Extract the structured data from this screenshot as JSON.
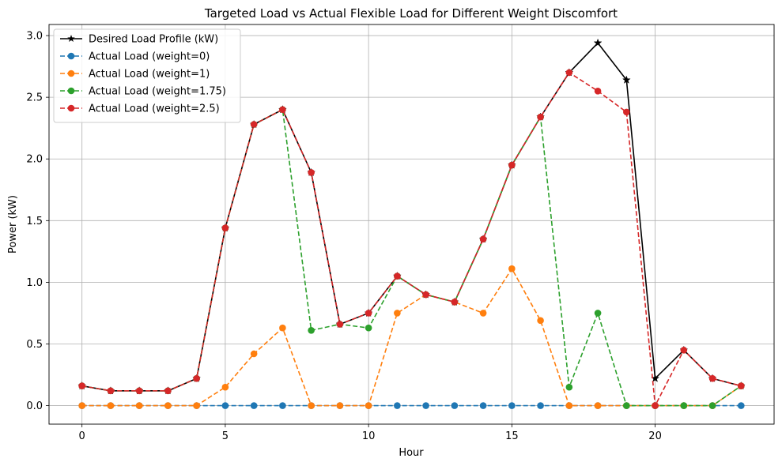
{
  "chart_data": {
    "type": "line",
    "title": "Targeted Load vs Actual Flexible Load for Different Weight Discomfort",
    "xlabel": "Hour",
    "ylabel": "Power (kW)",
    "x": [
      0,
      1,
      2,
      3,
      4,
      5,
      6,
      7,
      8,
      9,
      10,
      11,
      12,
      13,
      14,
      15,
      16,
      17,
      18,
      19,
      20,
      21,
      22,
      23
    ],
    "xlim": [
      -1.15,
      24.15
    ],
    "ylim": [
      -0.15,
      3.09
    ],
    "xticks": [
      0,
      5,
      10,
      15,
      20
    ],
    "yticks": [
      0.0,
      0.5,
      1.0,
      1.5,
      2.0,
      2.5,
      3.0
    ],
    "ytick_labels": [
      "0.0",
      "0.5",
      "1.0",
      "1.5",
      "2.0",
      "2.5",
      "3.0"
    ],
    "grid": true,
    "legend_position": "top-left",
    "series": [
      {
        "name": "Desired Load Profile (kW)",
        "color": "#000000",
        "linestyle": "solid",
        "marker": "star",
        "values": [
          0.16,
          0.12,
          0.12,
          0.12,
          0.22,
          1.44,
          2.28,
          2.4,
          1.89,
          0.66,
          0.75,
          1.05,
          0.9,
          0.84,
          1.35,
          1.95,
          2.34,
          2.7,
          2.94,
          2.64,
          0.22,
          0.45,
          0.22,
          0.16
        ]
      },
      {
        "name": "Actual Load (weight=0)",
        "color": "#1f77b4",
        "linestyle": "dashed",
        "marker": "circle",
        "values": [
          0,
          0,
          0,
          0,
          0,
          0,
          0,
          0,
          0,
          0,
          0,
          0,
          0,
          0,
          0,
          0,
          0,
          0,
          0,
          0,
          0,
          0,
          0,
          0
        ]
      },
      {
        "name": "Actual Load (weight=1)",
        "color": "#ff7f0e",
        "linestyle": "dashed",
        "marker": "circle",
        "values": [
          0,
          0,
          0,
          0,
          0,
          0.15,
          0.42,
          0.63,
          0,
          0,
          0,
          0.75,
          0.9,
          0.84,
          0.75,
          1.11,
          0.69,
          0,
          0,
          0,
          0,
          0,
          0,
          0.16
        ]
      },
      {
        "name": "Actual Load (weight=1.75)",
        "color": "#2ca02c",
        "linestyle": "dashed",
        "marker": "circle",
        "values": [
          0.16,
          0.12,
          0.12,
          0.12,
          0.22,
          1.44,
          2.28,
          2.4,
          0.61,
          0.66,
          0.63,
          1.05,
          0.9,
          0.84,
          1.35,
          1.95,
          2.34,
          0.15,
          0.75,
          0,
          0,
          0,
          0,
          0.16
        ]
      },
      {
        "name": "Actual Load (weight=2.5)",
        "color": "#d62728",
        "linestyle": "dashed",
        "marker": "circle",
        "values": [
          0.16,
          0.12,
          0.12,
          0.12,
          0.22,
          1.44,
          2.28,
          2.4,
          1.89,
          0.66,
          0.75,
          1.05,
          0.9,
          0.84,
          1.35,
          1.95,
          2.34,
          2.7,
          2.55,
          2.38,
          0,
          0.45,
          0.22,
          0.16
        ]
      }
    ]
  }
}
